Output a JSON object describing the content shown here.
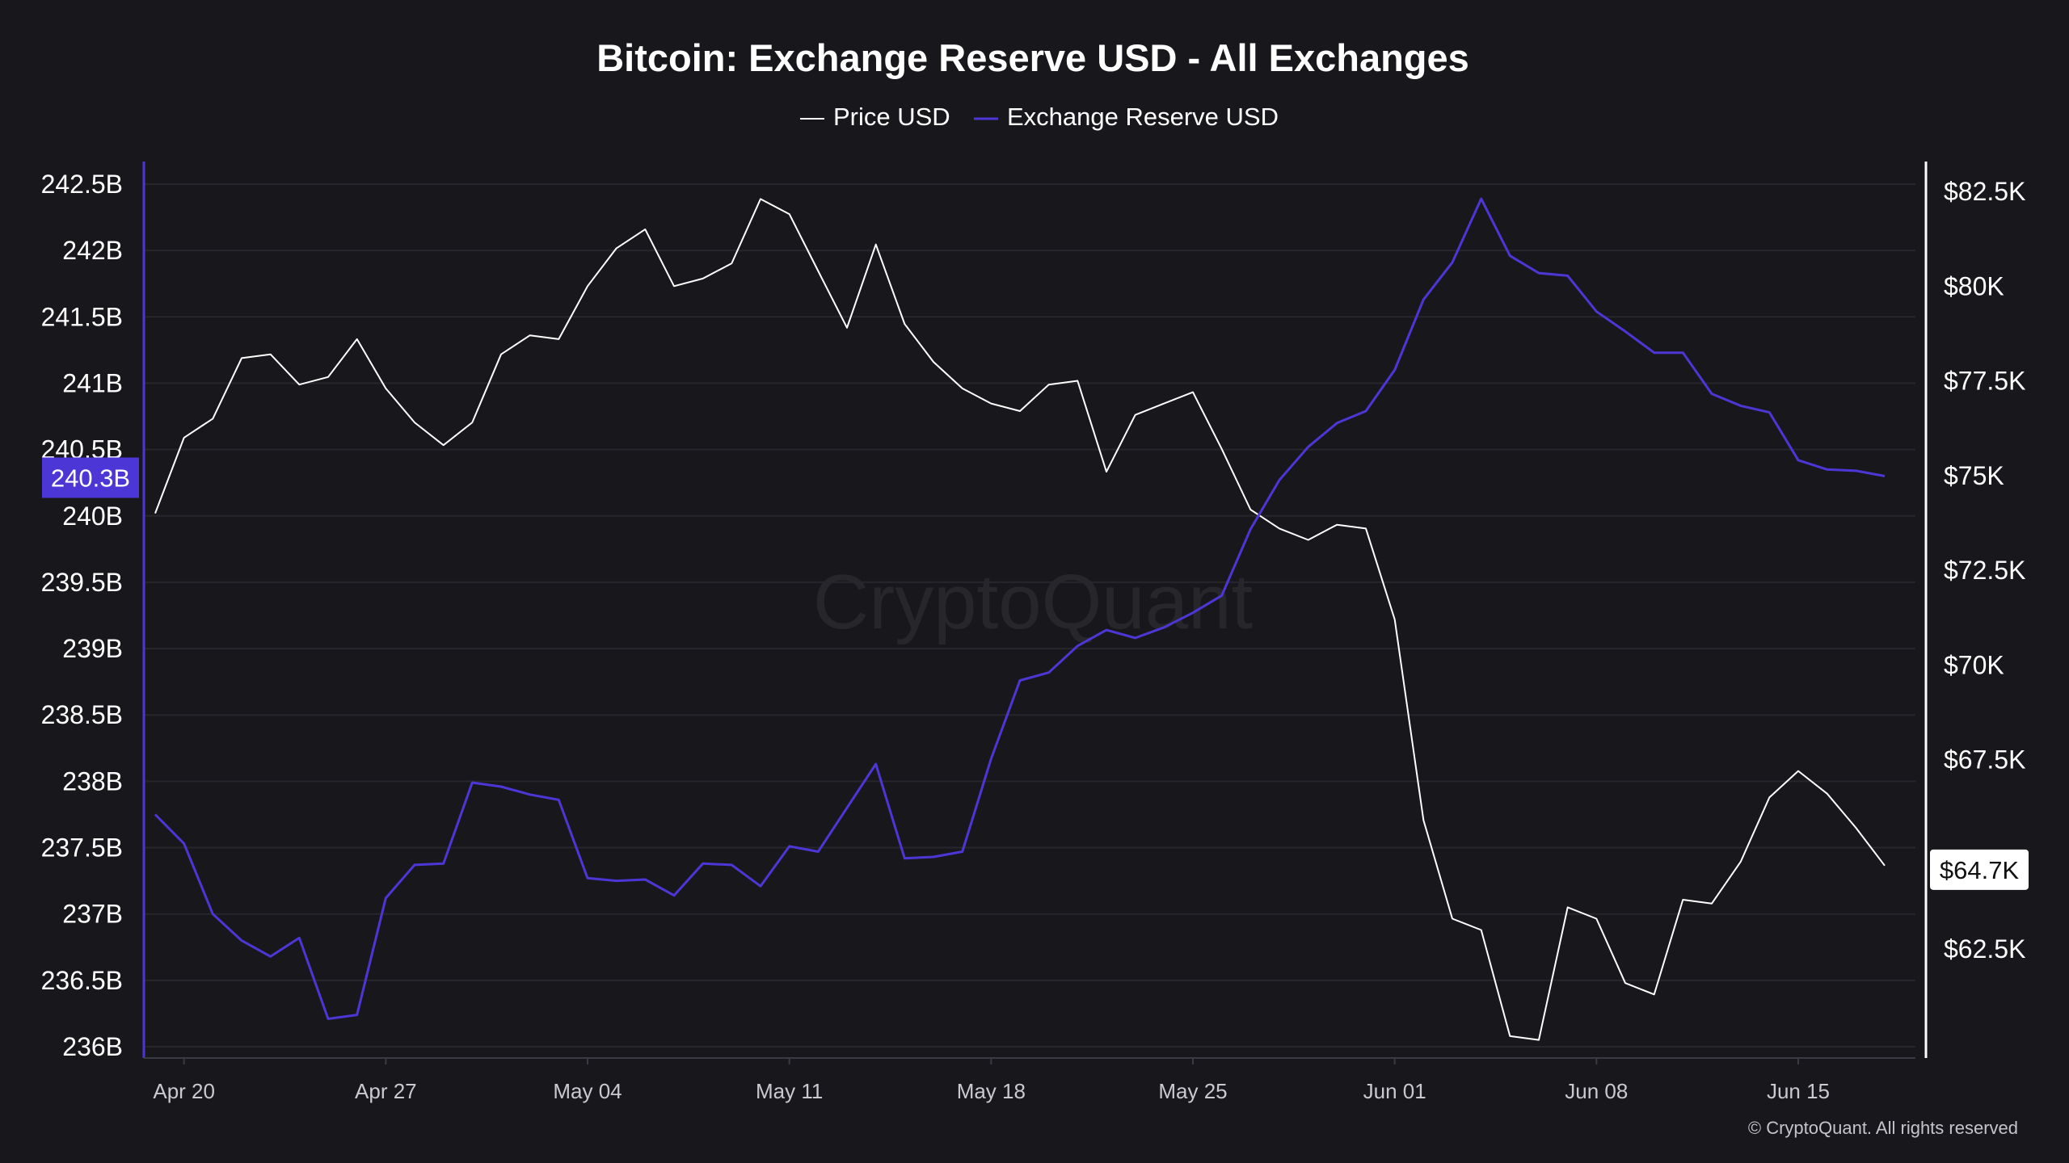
{
  "chart_data": {
    "type": "line",
    "title": "Bitcoin: Exchange Reserve USD - All Exchanges",
    "legend_position": "top-center",
    "grid": true,
    "x_ticks": [
      "Apr 20",
      "Apr 27",
      "May 04",
      "May 11",
      "May 18",
      "May 25",
      "Jun 01",
      "Jun 08",
      "Jun 15"
    ],
    "y_left": {
      "ticks": [
        "242.5B",
        "242B",
        "241.5B",
        "241B",
        "240.5B",
        "240B",
        "239.5B",
        "239B",
        "238.5B",
        "238B",
        "237.5B",
        "237B",
        "236.5B",
        "236B"
      ],
      "range": [
        236.0,
        242.65
      ],
      "unit": "B USD",
      "color": "#4d36d6"
    },
    "y_right": {
      "ticks": [
        "$82.5K",
        "$80K",
        "$77.5K",
        "$75K",
        "$72.5K",
        "$70K",
        "$67.5K",
        "$65K",
        "$62.5K"
      ],
      "range": [
        60.0,
        85.0
      ],
      "unit": "K USD",
      "color": "#ffffff"
    },
    "x_range": [
      "2024-04-19",
      "2024-06-18"
    ],
    "series": [
      {
        "name": "Price USD",
        "axis": "right",
        "color": "#ffffff",
        "x": [
          "2024-04-19",
          "2024-04-20",
          "2024-04-21",
          "2024-04-22",
          "2024-04-23",
          "2024-04-24",
          "2024-04-25",
          "2024-04-26",
          "2024-04-27",
          "2024-04-28",
          "2024-04-29",
          "2024-04-30",
          "2024-05-01",
          "2024-05-02",
          "2024-05-03",
          "2024-05-04",
          "2024-05-05",
          "2024-05-06",
          "2024-05-07",
          "2024-05-08",
          "2024-05-09",
          "2024-05-10",
          "2024-05-11",
          "2024-05-12",
          "2024-05-13",
          "2024-05-14",
          "2024-05-15",
          "2024-05-16",
          "2024-05-17",
          "2024-05-18",
          "2024-05-19",
          "2024-05-20",
          "2024-05-21",
          "2024-05-22",
          "2024-05-23",
          "2024-05-24",
          "2024-05-25",
          "2024-05-26",
          "2024-05-27",
          "2024-05-28",
          "2024-05-29",
          "2024-05-30",
          "2024-05-31",
          "2024-06-01",
          "2024-06-02",
          "2024-06-03",
          "2024-06-04",
          "2024-06-05",
          "2024-06-06",
          "2024-06-07",
          "2024-06-08",
          "2024-06-09",
          "2024-06-10",
          "2024-06-11",
          "2024-06-12",
          "2024-06-13",
          "2024-06-14",
          "2024-06-15",
          "2024-06-16",
          "2024-06-17",
          "2024-06-18"
        ],
        "values": [
          74.0,
          76.0,
          76.5,
          78.1,
          78.2,
          77.4,
          77.6,
          78.6,
          77.3,
          76.4,
          75.8,
          76.4,
          78.2,
          78.7,
          78.6,
          80.0,
          81.0,
          81.5,
          80.0,
          80.2,
          80.6,
          82.3,
          81.9,
          80.4,
          78.9,
          81.1,
          79.0,
          78.0,
          77.3,
          76.9,
          76.7,
          77.4,
          77.5,
          75.1,
          76.6,
          76.9,
          77.2,
          75.7,
          74.1,
          73.6,
          73.3,
          73.7,
          73.6,
          71.2,
          65.9,
          63.3,
          63.0,
          60.2,
          60.1,
          63.6,
          63.3,
          61.6,
          61.3,
          63.8,
          63.7,
          64.8,
          66.5,
          67.2,
          66.6,
          65.7,
          64.7
        ]
      },
      {
        "name": "Exchange Reserve USD",
        "axis": "left",
        "color": "#4d36d6",
        "x": [
          "2024-04-19",
          "2024-04-20",
          "2024-04-21",
          "2024-04-22",
          "2024-04-23",
          "2024-04-24",
          "2024-04-25",
          "2024-04-26",
          "2024-04-27",
          "2024-04-28",
          "2024-04-29",
          "2024-04-30",
          "2024-05-01",
          "2024-05-02",
          "2024-05-03",
          "2024-05-04",
          "2024-05-05",
          "2024-05-06",
          "2024-05-07",
          "2024-05-08",
          "2024-05-09",
          "2024-05-10",
          "2024-05-11",
          "2024-05-12",
          "2024-05-13",
          "2024-05-14",
          "2024-05-15",
          "2024-05-16",
          "2024-05-17",
          "2024-05-18",
          "2024-05-19",
          "2024-05-20",
          "2024-05-21",
          "2024-05-22",
          "2024-05-23",
          "2024-05-24",
          "2024-05-25",
          "2024-05-26",
          "2024-05-27",
          "2024-05-28",
          "2024-05-29",
          "2024-05-30",
          "2024-05-31",
          "2024-06-01",
          "2024-06-02",
          "2024-06-03",
          "2024-06-04",
          "2024-06-05",
          "2024-06-06",
          "2024-06-07",
          "2024-06-08",
          "2024-06-09",
          "2024-06-10",
          "2024-06-11",
          "2024-06-12",
          "2024-06-13",
          "2024-06-14",
          "2024-06-15",
          "2024-06-16",
          "2024-06-17",
          "2024-06-18"
        ],
        "values": [
          237.75,
          237.53,
          237.0,
          236.8,
          236.68,
          236.82,
          236.21,
          236.24,
          237.12,
          237.37,
          237.38,
          237.99,
          237.96,
          237.9,
          237.86,
          237.27,
          237.25,
          237.26,
          237.14,
          237.38,
          237.37,
          237.21,
          237.51,
          237.47,
          237.8,
          238.13,
          237.42,
          237.43,
          237.47,
          238.17,
          238.76,
          238.82,
          239.02,
          239.14,
          239.08,
          239.16,
          239.27,
          239.4,
          239.9,
          240.27,
          240.52,
          240.7,
          240.79,
          241.1,
          241.63,
          241.91,
          242.39,
          241.96,
          241.83,
          241.81,
          241.54,
          241.39,
          241.23,
          241.23,
          240.92,
          240.83,
          240.78,
          240.42,
          240.35,
          240.34,
          240.3
        ]
      }
    ],
    "last_value_labels": {
      "left": "240.3B",
      "right": "$64.7K"
    }
  },
  "watermark": "CryptoQuant",
  "copyright": "© CryptoQuant. All rights reserved"
}
